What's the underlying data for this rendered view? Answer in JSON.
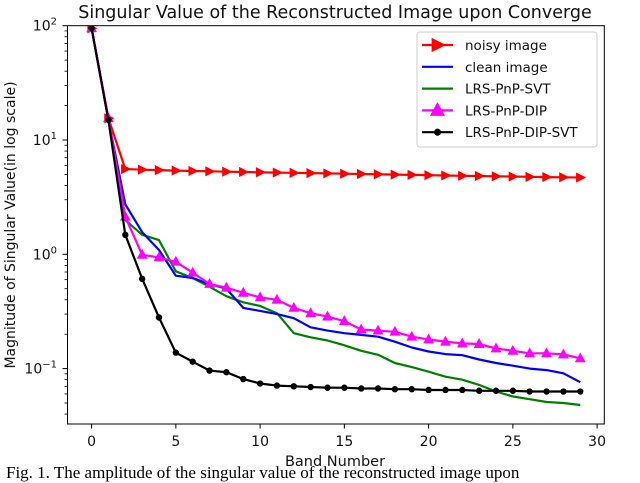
{
  "chart_data": {
    "type": "line",
    "title": "Singular Value of the Reconstructed Image upon Converge",
    "xlabel": "Band Number",
    "ylabel": "Magnitude of Singular Value(in log scale)",
    "xscale": "linear",
    "yscale": "log",
    "xlim": [
      -1,
      30.5
    ],
    "ylim": [
      0.033,
      100
    ],
    "xticks": [
      0,
      5,
      10,
      15,
      20,
      25,
      30
    ],
    "yticks": [
      {
        "value": 100,
        "label": "10",
        "exp": "2"
      },
      {
        "value": 10,
        "label": "10",
        "exp": "1"
      },
      {
        "value": 1,
        "label": "10",
        "exp": "0"
      },
      {
        "value": 0.1,
        "label": "10",
        "exp": "−1"
      }
    ],
    "grid": false,
    "legend_position": "upper right",
    "x": [
      0,
      1,
      2,
      3,
      4,
      5,
      6,
      7,
      8,
      9,
      10,
      11,
      12,
      13,
      14,
      15,
      16,
      17,
      18,
      19,
      20,
      21,
      22,
      23,
      24,
      25,
      26,
      27,
      28,
      29
    ],
    "series": [
      {
        "name": "noisy image",
        "color": "#ff0000",
        "marker": "triangle-right",
        "values": [
          95,
          15.5,
          5.57,
          5.5,
          5.45,
          5.4,
          5.36,
          5.32,
          5.28,
          5.25,
          5.22,
          5.19,
          5.16,
          5.13,
          5.1,
          5.07,
          5.04,
          5.01,
          4.98,
          4.95,
          4.92,
          4.89,
          4.86,
          4.84,
          4.81,
          4.79,
          4.76,
          4.74,
          4.72,
          4.7
        ]
      },
      {
        "name": "clean image",
        "color": "#0000ff",
        "marker": "none",
        "values": [
          95,
          15,
          2.74,
          1.56,
          1.09,
          0.65,
          0.62,
          0.55,
          0.5,
          0.34,
          0.32,
          0.3,
          0.276,
          0.23,
          0.215,
          0.204,
          0.197,
          0.19,
          0.172,
          0.153,
          0.141,
          0.134,
          0.131,
          0.12,
          0.112,
          0.106,
          0.1,
          0.097,
          0.091,
          0.076
        ]
      },
      {
        "name": "LRS-PnP-SVT",
        "color": "#008000",
        "marker": "none",
        "values": [
          95,
          15,
          1.99,
          1.48,
          1.33,
          0.71,
          0.62,
          0.52,
          0.43,
          0.38,
          0.353,
          0.305,
          0.204,
          0.188,
          0.176,
          0.16,
          0.143,
          0.132,
          0.112,
          0.103,
          0.094,
          0.085,
          0.08,
          0.072,
          0.063,
          0.057,
          0.054,
          0.051,
          0.05,
          0.048
        ]
      },
      {
        "name": "LRS-PnP-DIP",
        "color": "#ff00ff",
        "marker": "triangle-up",
        "values": [
          95,
          15.5,
          2.13,
          0.99,
          0.94,
          0.86,
          0.69,
          0.55,
          0.51,
          0.46,
          0.42,
          0.4,
          0.34,
          0.305,
          0.285,
          0.26,
          0.22,
          0.215,
          0.21,
          0.19,
          0.18,
          0.172,
          0.166,
          0.164,
          0.15,
          0.143,
          0.136,
          0.136,
          0.133,
          0.123
        ]
      },
      {
        "name": "LRS-PnP-DIP-SVT",
        "color": "#000000",
        "marker": "circle",
        "values": [
          95,
          15,
          1.48,
          0.61,
          0.28,
          0.138,
          0.115,
          0.096,
          0.093,
          0.081,
          0.074,
          0.071,
          0.07,
          0.069,
          0.068,
          0.068,
          0.067,
          0.067,
          0.066,
          0.066,
          0.065,
          0.065,
          0.065,
          0.064,
          0.064,
          0.064,
          0.063,
          0.063,
          0.063,
          0.063
        ]
      }
    ]
  },
  "caption": "Fig. 1.  The amplitude of the singular value of the reconstructed image upon"
}
